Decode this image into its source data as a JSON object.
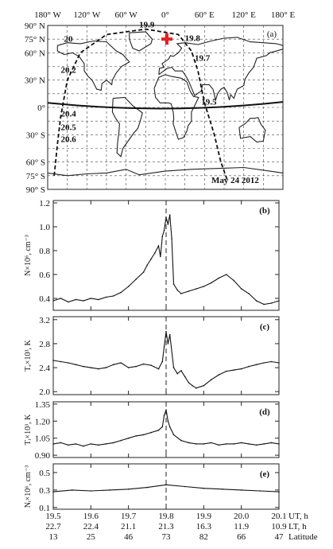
{
  "chart_data": [
    {
      "panel": "(a)",
      "type": "map",
      "top_ticks": [
        "180° W",
        "120° W",
        "60° W",
        "0°",
        "60° E",
        "120° E",
        "180° E"
      ],
      "left_ticks": [
        "90° N",
        "75° N",
        "60° N",
        "30° N",
        "0°",
        "30° S",
        "60° S",
        "75° S",
        "90° S"
      ],
      "date": "May 24 2012",
      "track_labels": [
        {
          "text": "19.9",
          "lon": -40,
          "lat": 88
        },
        {
          "text": "19.8",
          "lon": 30,
          "lat": 73
        },
        {
          "text": "19.7",
          "lon": 45,
          "lat": 51
        },
        {
          "text": "19.5",
          "lon": 55,
          "lat": 3
        },
        {
          "text": "20.2",
          "lon": -160,
          "lat": 38
        },
        {
          "text": "20.4",
          "lon": -160,
          "lat": -10
        },
        {
          "text": "20.5",
          "lon": -160,
          "lat": -25
        },
        {
          "text": "20.6",
          "lon": -160,
          "lat": -38
        },
        {
          "text": "20",
          "lon": -155,
          "lat": 72
        }
      ],
      "marker": {
        "lon": 0,
        "lat": 75
      }
    },
    {
      "panel": "(b)",
      "type": "line",
      "ylabel": "N×10⁶, cm⁻³",
      "yticks": [
        0.4,
        0.6,
        0.8,
        1.0,
        1.2
      ],
      "ylim": [
        0.3,
        1.22
      ],
      "x": [
        19.5,
        19.52,
        19.54,
        19.56,
        19.58,
        19.6,
        19.62,
        19.64,
        19.66,
        19.68,
        19.7,
        19.72,
        19.74,
        19.75,
        19.76,
        19.77,
        19.78,
        19.785,
        19.79,
        19.795,
        19.8,
        19.805,
        19.81,
        19.815,
        19.82,
        19.83,
        19.84,
        19.86,
        19.88,
        19.9,
        19.92,
        19.94,
        19.96,
        19.98,
        20.0,
        20.02,
        20.04,
        20.06,
        20.08,
        20.1
      ],
      "values": [
        0.38,
        0.4,
        0.37,
        0.39,
        0.38,
        0.4,
        0.39,
        0.41,
        0.42,
        0.45,
        0.5,
        0.56,
        0.62,
        0.68,
        0.73,
        0.78,
        0.84,
        0.75,
        0.92,
        0.97,
        1.08,
        1.02,
        1.1,
        0.9,
        0.52,
        0.47,
        0.44,
        0.46,
        0.48,
        0.5,
        0.53,
        0.57,
        0.6,
        0.55,
        0.48,
        0.44,
        0.38,
        0.35,
        0.36,
        0.38
      ]
    },
    {
      "panel": "(c)",
      "type": "line",
      "ylabel": "Tₑ×10³, K",
      "yticks": [
        2.0,
        2.4,
        2.8,
        3.2
      ],
      "ylim": [
        1.95,
        3.25
      ],
      "x": [
        19.5,
        19.52,
        19.54,
        19.56,
        19.58,
        19.6,
        19.62,
        19.64,
        19.66,
        19.68,
        19.7,
        19.72,
        19.74,
        19.76,
        19.78,
        19.79,
        19.795,
        19.8,
        19.805,
        19.81,
        19.82,
        19.83,
        19.84,
        19.85,
        19.86,
        19.87,
        19.88,
        19.9,
        19.92,
        19.94,
        19.96,
        19.98,
        20.0,
        20.02,
        20.04,
        20.06,
        20.08,
        20.1
      ],
      "values": [
        2.52,
        2.5,
        2.48,
        2.45,
        2.42,
        2.4,
        2.38,
        2.4,
        2.45,
        2.48,
        2.4,
        2.42,
        2.46,
        2.44,
        2.38,
        2.5,
        2.75,
        3.0,
        2.8,
        2.95,
        2.4,
        2.3,
        2.35,
        2.25,
        2.15,
        2.1,
        2.06,
        2.1,
        2.2,
        2.28,
        2.34,
        2.36,
        2.38,
        2.42,
        2.45,
        2.48,
        2.5,
        2.48
      ]
    },
    {
      "panel": "(d)",
      "type": "line",
      "ylabel": "Tᵢ×10³, K",
      "yticks": [
        0.9,
        1.05,
        1.2,
        1.35
      ],
      "ylim": [
        0.88,
        1.37
      ],
      "x": [
        19.5,
        19.52,
        19.54,
        19.56,
        19.58,
        19.6,
        19.62,
        19.64,
        19.66,
        19.68,
        19.7,
        19.72,
        19.74,
        19.76,
        19.78,
        19.79,
        19.795,
        19.8,
        19.805,
        19.81,
        19.82,
        19.84,
        19.86,
        19.88,
        19.9,
        19.92,
        19.94,
        19.96,
        19.98,
        20.0,
        20.02,
        20.04,
        20.06,
        20.08,
        20.1
      ],
      "values": [
        1.0,
        1.01,
        0.99,
        1.0,
        0.98,
        1.0,
        0.99,
        1.0,
        1.01,
        1.03,
        1.05,
        1.07,
        1.08,
        1.1,
        1.12,
        1.15,
        1.25,
        1.3,
        1.2,
        1.15,
        1.08,
        1.03,
        1.01,
        1.0,
        1.0,
        1.01,
        0.99,
        1.0,
        1.0,
        1.01,
        1.0,
        0.99,
        1.0,
        1.01,
        1.0
      ]
    },
    {
      "panel": "(e)",
      "type": "line",
      "ylabel": "Nᵢ×10⁶, cm⁻³",
      "yticks": [
        0.1,
        0.3,
        0.5
      ],
      "ylim": [
        0.08,
        0.6
      ],
      "x": [
        19.5,
        19.55,
        19.6,
        19.65,
        19.7,
        19.75,
        19.8,
        19.85,
        19.9,
        19.95,
        20.0,
        20.05,
        20.1
      ],
      "values": [
        0.28,
        0.3,
        0.29,
        0.3,
        0.31,
        0.33,
        0.36,
        0.34,
        0.32,
        0.31,
        0.3,
        0.29,
        0.28
      ]
    }
  ],
  "x_axis": {
    "xlim": [
      19.5,
      20.1
    ],
    "rows": [
      {
        "label": "UT, h",
        "values": [
          "19.5",
          "19.6",
          "19.7",
          "19.8",
          "19.9",
          "20.0",
          "20.1"
        ]
      },
      {
        "label": "LT, h",
        "values": [
          "22.7",
          "22.4",
          "21.1",
          "21.3",
          "16.3",
          "11.9",
          "10.9"
        ]
      },
      {
        "label": "Latitude",
        "values": [
          "13",
          "25",
          "46",
          "73",
          "82",
          "66",
          "47"
        ]
      }
    ]
  },
  "marker_ut": 19.8,
  "colors": {
    "marker": "#e8201e",
    "ink": "#111111"
  }
}
